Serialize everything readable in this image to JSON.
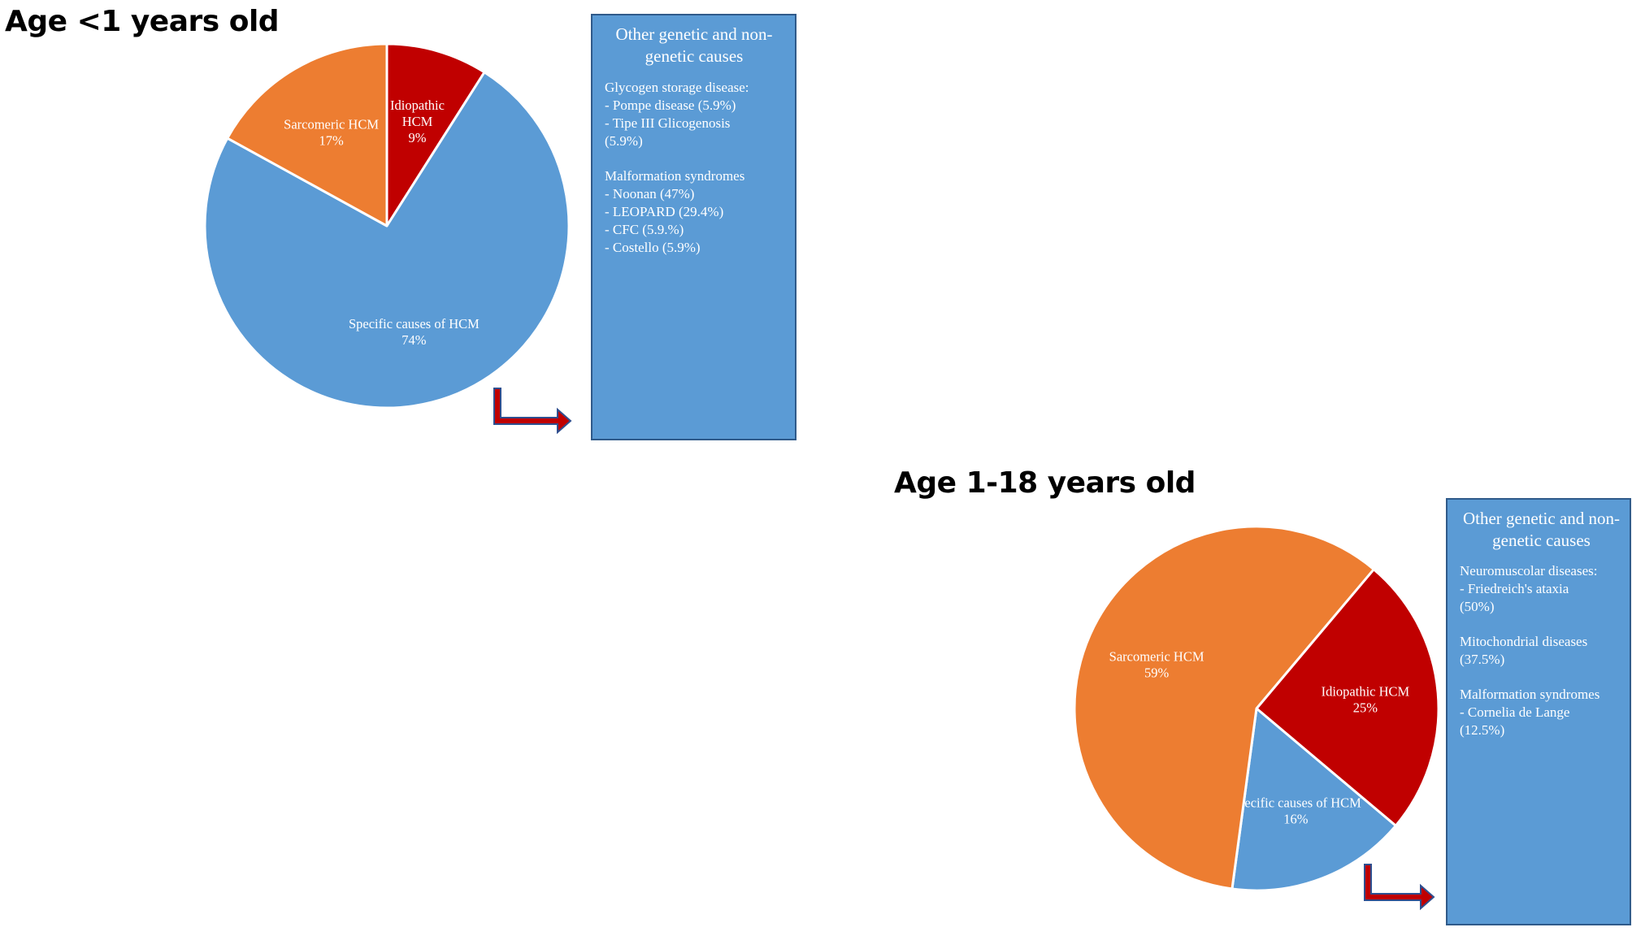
{
  "charts": [
    {
      "title": "Age <1 years old",
      "box": {
        "title": "Other genetic and non-genetic causes",
        "groups": [
          {
            "lines": [
              "Glycogen storage disease:",
              "- Pompe disease (5.9%)",
              "- Tipe III Glicogenosis",
              "(5.9%)"
            ]
          },
          {
            "lines": [
              "Malformation syndromes",
              "- Noonan (47%)",
              "- LEOPARD (29.4%)",
              "- CFC (5.9.%)",
              "- Costello (5.9%)"
            ]
          }
        ]
      }
    },
    {
      "title": "Age 1-18 years old",
      "box": {
        "title": "Other genetic and non-genetic causes",
        "groups": [
          {
            "lines": [
              "Neuromuscolar diseases:",
              "- Friedreich's ataxia",
              "(50%)"
            ]
          },
          {
            "lines": [
              "Mitochondrial diseases",
              "(37.5%)"
            ]
          },
          {
            "lines": [
              "Malformation syndromes",
              "- Cornelia de Lange",
              "(12.5%)"
            ]
          }
        ]
      }
    }
  ],
  "chart_data": [
    {
      "type": "pie",
      "title": "Age <1 years old",
      "slices": [
        {
          "label": "Idiopathic HCM",
          "display": [
            "Idiopathic",
            "HCM",
            "9%"
          ],
          "value": 9,
          "color": "#c00000"
        },
        {
          "label": "Specific causes of HCM",
          "display": [
            "Specific causes of HCM",
            "74%"
          ],
          "value": 74,
          "color": "#5b9bd5"
        },
        {
          "label": "Sarcomeric HCM",
          "display": [
            "Sarcomeric HCM",
            "17%"
          ],
          "value": 17,
          "color": "#ed7d31"
        }
      ]
    },
    {
      "type": "pie",
      "title": "Age 1-18 years old",
      "slices": [
        {
          "label": "Idiopathic HCM",
          "display": [
            "Idiopathic HCM",
            "25%"
          ],
          "value": 25,
          "color": "#c00000"
        },
        {
          "label": "Specific causes of HCM",
          "display": [
            "Specific causes of HCM",
            "16%"
          ],
          "value": 16,
          "color": "#5b9bd5"
        },
        {
          "label": "Sarcomeric HCM",
          "display": [
            "Sarcomeric HCM",
            "59%"
          ],
          "value": 59,
          "color": "#ed7d31"
        }
      ]
    }
  ],
  "arrow_colors": {
    "fill": "#c00000",
    "outline": "#2f4f8f"
  }
}
